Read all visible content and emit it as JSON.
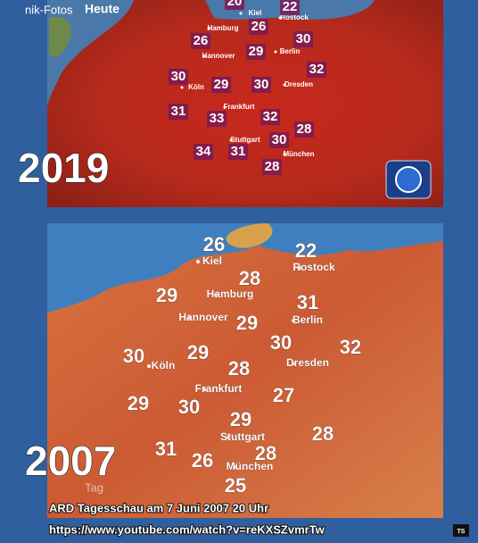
{
  "watermark": "nik-Fotos",
  "maps": [
    {
      "heading": "Heute",
      "year": "2019",
      "cities": [
        "Kiel",
        "Rostock",
        "Hamburg",
        "Berlin",
        "Hannover",
        "Köln",
        "Dresden",
        "Frankfurt",
        "Stuttgart",
        "München"
      ],
      "temperatures": [
        20,
        22,
        26,
        30,
        26,
        29,
        32,
        30,
        29,
        30,
        31,
        33,
        32,
        28,
        30,
        34,
        31,
        28
      ]
    },
    {
      "year": "2007",
      "corner_text": "Tag",
      "cities": [
        "Kiel",
        "Rostock",
        "Hamburg",
        "Berlin",
        "Hannover",
        "Köln",
        "Dresden",
        "Frankfurt",
        "Stuttgart",
        "München"
      ],
      "temperatures": [
        26,
        22,
        28,
        29,
        31,
        29,
        30,
        32,
        30,
        29,
        28,
        27,
        29,
        30,
        29,
        28,
        31,
        28,
        26,
        25
      ]
    }
  ],
  "caption": {
    "line1": "ARD Tagesschau am 7 Juni 2007 20 Uhr",
    "line2": "https://www.youtube.com/watch?v=reKXSZvmrTw",
    "logo": "TS"
  }
}
